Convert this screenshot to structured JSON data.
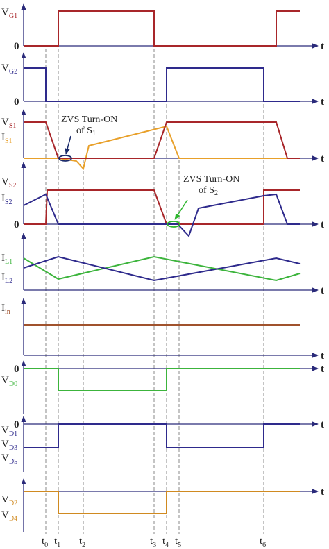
{
  "panels": [
    {
      "labels": [
        {
          "base": "V",
          "sub": "G1"
        }
      ],
      "zero": "0",
      "axis": "t"
    },
    {
      "labels": [
        {
          "base": "V",
          "sub": "G2"
        }
      ],
      "zero": "0",
      "axis": "t"
    },
    {
      "labels": [
        {
          "base": "V",
          "sub": "S1"
        },
        {
          "base": "I",
          "sub": "S1"
        }
      ],
      "axis": "t"
    },
    {
      "labels": [
        {
          "base": "V",
          "sub": "S2"
        },
        {
          "base": "I",
          "sub": "S2"
        }
      ],
      "zero": "0",
      "axis": "t"
    },
    {
      "labels": [
        {
          "base": "I",
          "sub": "L1"
        },
        {
          "base": "I",
          "sub": "L2"
        }
      ],
      "axis": "t"
    },
    {
      "labels": [
        {
          "base": "I",
          "sub": "in"
        }
      ],
      "axis": "t"
    },
    {
      "labels": [
        {
          "base": "V",
          "sub": "D0"
        }
      ],
      "zero": "0",
      "axis": "t"
    },
    {
      "labels": [
        {
          "base": "V",
          "sub": "D1"
        },
        {
          "base": "V",
          "sub": "D3"
        },
        {
          "base": "V",
          "sub": "D5"
        }
      ],
      "zero": "0",
      "axis": "t"
    },
    {
      "labels": [
        {
          "base": "V",
          "sub": "D2"
        },
        {
          "base": "V",
          "sub": "D4"
        }
      ],
      "axis": "t"
    }
  ],
  "annotations": [
    {
      "line1": "ZVS Turn-ON",
      "line2": {
        "base": "of S",
        "sub": "1"
      }
    },
    {
      "line1": "ZVS Turn-ON",
      "line2": {
        "base": "of S",
        "sub": "2"
      }
    }
  ],
  "time_labels": [
    {
      "base": "t",
      "sub": "0"
    },
    {
      "base": "t",
      "sub": "1"
    },
    {
      "base": "t",
      "sub": "2"
    },
    {
      "base": "t",
      "sub": "3"
    },
    {
      "base": "t",
      "sub": "4"
    },
    {
      "base": "t",
      "sub": "5"
    },
    {
      "base": "t",
      "sub": "6"
    }
  ]
}
